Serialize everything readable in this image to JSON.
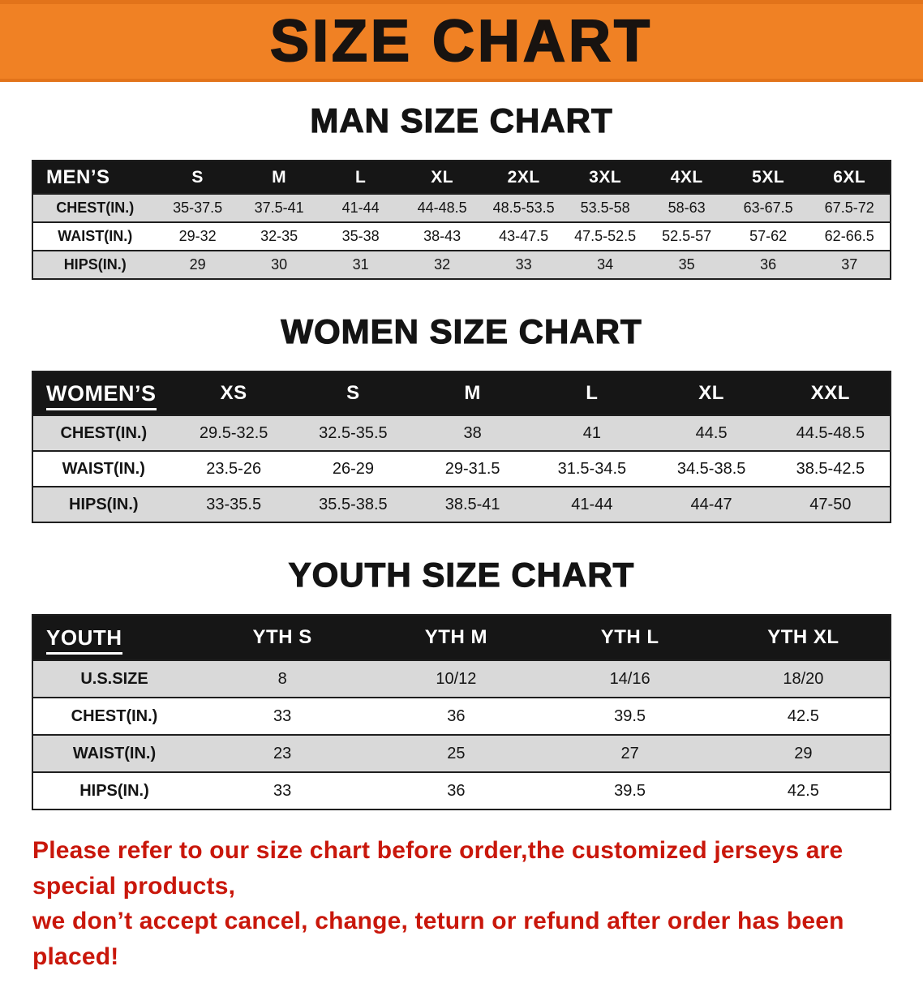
{
  "banner": {
    "title": "SIZE CHART"
  },
  "sections": [
    {
      "id": "men",
      "heading": "MAN SIZE CHART",
      "table": {
        "header": [
          "MEN’S",
          "S",
          "M",
          "L",
          "XL",
          "2XL",
          "3XL",
          "4XL",
          "5XL",
          "6XL"
        ],
        "rows": [
          {
            "label": "CHEST(IN.)",
            "values": [
              "35-37.5",
              "37.5-41",
              "41-44",
              "44-48.5",
              "48.5-53.5",
              "53.5-58",
              "58-63",
              "63-67.5",
              "67.5-72"
            ]
          },
          {
            "label": "WAIST(IN.)",
            "values": [
              "29-32",
              "32-35",
              "35-38",
              "38-43",
              "43-47.5",
              "47.5-52.5",
              "52.5-57",
              "57-62",
              "62-66.5"
            ]
          },
          {
            "label": "HIPS(IN.)",
            "values": [
              "29",
              "30",
              "31",
              "32",
              "33",
              "34",
              "35",
              "36",
              "37"
            ]
          }
        ]
      }
    },
    {
      "id": "women",
      "heading": "WOMEN SIZE CHART",
      "table": {
        "header": [
          "WOMEN’S",
          "XS",
          "S",
          "M",
          "L",
          "XL",
          "XXL"
        ],
        "rows": [
          {
            "label": "CHEST(IN.)",
            "values": [
              "29.5-32.5",
              "32.5-35.5",
              "38",
              "41",
              "44.5",
              "44.5-48.5"
            ]
          },
          {
            "label": "WAIST(IN.)",
            "values": [
              "23.5-26",
              "26-29",
              "29-31.5",
              "31.5-34.5",
              "34.5-38.5",
              "38.5-42.5"
            ]
          },
          {
            "label": "HIPS(IN.)",
            "values": [
              "33-35.5",
              "35.5-38.5",
              "38.5-41",
              "41-44",
              "44-47",
              "47-50"
            ]
          }
        ]
      }
    },
    {
      "id": "youth",
      "heading": "YOUTH SIZE CHART",
      "table": {
        "header": [
          "YOUTH",
          "YTH S",
          "YTH M",
          "YTH L",
          "YTH XL"
        ],
        "rows": [
          {
            "label": "U.S.SIZE",
            "values": [
              "8",
              "10/12",
              "14/16",
              "18/20"
            ]
          },
          {
            "label": "CHEST(IN.)",
            "values": [
              "33",
              "36",
              "39.5",
              "42.5"
            ]
          },
          {
            "label": "WAIST(IN.)",
            "values": [
              "23",
              "25",
              "27",
              "29"
            ]
          },
          {
            "label": "HIPS(IN.)",
            "values": [
              "33",
              "36",
              "39.5",
              "42.5"
            ]
          }
        ]
      }
    }
  ],
  "footer": {
    "line1": "Please refer to our size chart before order,the customized jerseys are special products,",
    "line2": "we don’t accept cancel, change, teturn or refund after order has been placed!"
  },
  "colors": {
    "banner_orange": "#f08124",
    "table_header_black": "#161616",
    "row_gray": "#d9d9d9",
    "notice_red": "#c9170b"
  }
}
